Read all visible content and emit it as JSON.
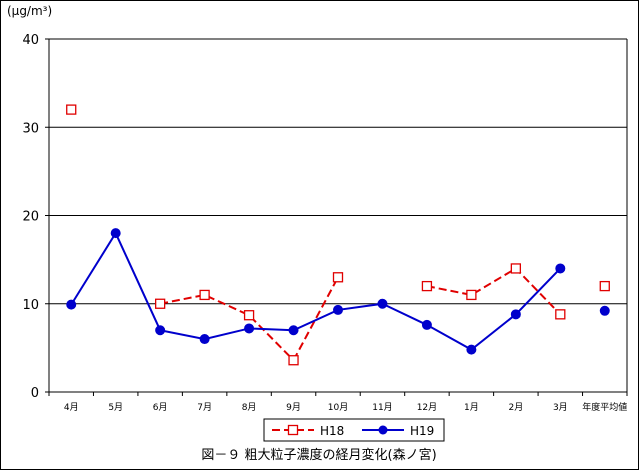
{
  "chart_data": {
    "type": "line",
    "title": "図－９ 粗大粒子濃度の経月変化(森ノ宮)",
    "unit_label": "(μg/m³)",
    "xlabel": "",
    "ylabel": "",
    "ylim": [
      0,
      40
    ],
    "yticks": [
      "0",
      "10",
      "20",
      "30",
      "40"
    ],
    "grid": true,
    "legend_position": "bottom",
    "categories": [
      "4月",
      "5月",
      "6月",
      "7月",
      "8月",
      "9月",
      "10月",
      "11月",
      "12月",
      "1月",
      "2月",
      "3月",
      "年度平均値"
    ],
    "series": [
      {
        "name": "H18",
        "color": "#e00000",
        "marker": "square-open",
        "line_style": "dashed",
        "values": [
          32,
          null,
          10,
          11,
          8.7,
          3.6,
          13,
          null,
          12,
          11,
          14,
          8.8,
          12
        ],
        "connected_segments": [
          [
            2,
            5
          ],
          [
            5,
            6
          ],
          [
            8,
            11
          ]
        ]
      },
      {
        "name": "H19",
        "color": "#0000cc",
        "marker": "circle-filled",
        "line_style": "solid",
        "values": [
          9.9,
          18,
          7,
          6,
          7.2,
          7,
          9.3,
          10,
          7.6,
          4.8,
          8.8,
          14,
          9.2
        ],
        "connected_segments": [
          [
            0,
            11
          ]
        ]
      }
    ]
  }
}
